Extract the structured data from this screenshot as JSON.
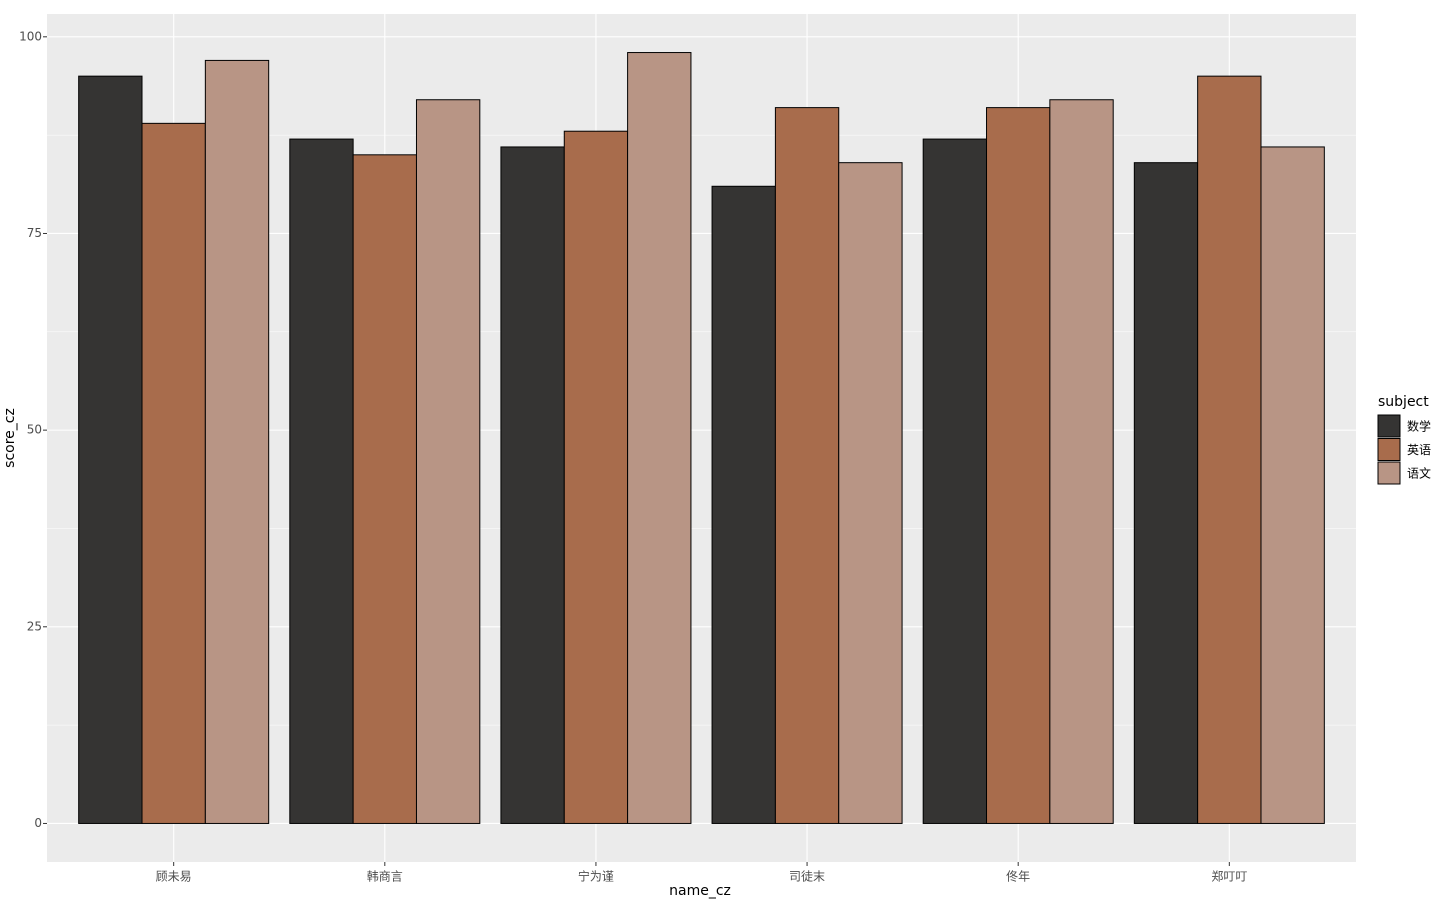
{
  "chart_data": {
    "type": "bar",
    "x_label": "name_cz",
    "y_label": "score_cz",
    "categories": [
      "顾未易",
      "韩商言",
      "宁为谨",
      "司徒末",
      "佟年",
      "郑叮叮"
    ],
    "series": [
      {
        "name": "数学",
        "color": "#353433",
        "values": [
          95,
          87,
          86,
          81,
          87,
          84
        ]
      },
      {
        "name": "英语",
        "color": "#a86c4c",
        "values": [
          89,
          85,
          88,
          91,
          91,
          95
        ]
      },
      {
        "name": "语文",
        "color": "#b89585",
        "values": [
          97,
          92,
          98,
          84,
          92,
          86
        ]
      }
    ],
    "legend_title": "subject",
    "legend_position": "right",
    "ylim": [
      -4.9,
      102.9
    ],
    "yticks": [
      0,
      25,
      50,
      75,
      100
    ],
    "grid": true
  }
}
